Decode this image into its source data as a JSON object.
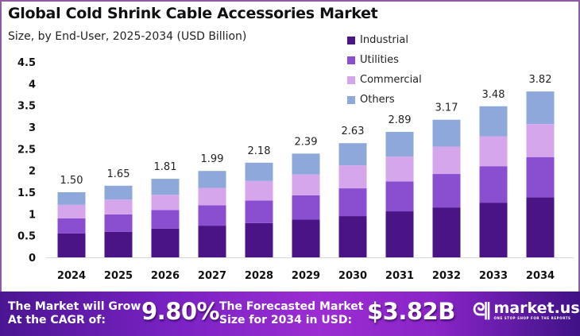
{
  "header": {
    "title": "Global Cold Shrink Cable Accessories Market",
    "subtitle": "Size, by End-User, 2025-2034 (USD Billion)"
  },
  "colors": {
    "Industrial": "#4a1486",
    "Utilities": "#8a4fd0",
    "Commercial": "#d6a6ec",
    "Others": "#8ea8dc",
    "border": "#8e5ba8",
    "footer_accent": "#9b2dd2"
  },
  "chart_data": {
    "type": "bar",
    "stacked": true,
    "title": "Global Cold Shrink Cable Accessories Market",
    "subtitle": "Size, by End-User, 2025-2034 (USD Billion)",
    "xlabel": "",
    "ylabel": "",
    "ylim": [
      0,
      4.5
    ],
    "yticks": [
      "0",
      "0.5",
      "1",
      "1.5",
      "2",
      "2.5",
      "3",
      "3.5",
      "4",
      "4.5"
    ],
    "ytick_values": [
      0,
      0.5,
      1,
      1.5,
      2,
      2.5,
      3,
      3.5,
      4,
      4.5
    ],
    "grid": false,
    "legend_position": "top-right",
    "categories": [
      "2024",
      "2025",
      "2026",
      "2027",
      "2028",
      "2029",
      "2030",
      "2031",
      "2032",
      "2033",
      "2034"
    ],
    "series": [
      {
        "name": "Industrial",
        "values": [
          0.55,
          0.59,
          0.66,
          0.73,
          0.79,
          0.87,
          0.95,
          1.06,
          1.15,
          1.26,
          1.38
        ]
      },
      {
        "name": "Utilities",
        "values": [
          0.35,
          0.4,
          0.43,
          0.47,
          0.52,
          0.56,
          0.64,
          0.69,
          0.77,
          0.84,
          0.93
        ]
      },
      {
        "name": "Commercial",
        "values": [
          0.31,
          0.34,
          0.35,
          0.4,
          0.45,
          0.48,
          0.53,
          0.57,
          0.63,
          0.69,
          0.76
        ]
      },
      {
        "name": "Others",
        "values": [
          0.29,
          0.32,
          0.37,
          0.39,
          0.42,
          0.48,
          0.51,
          0.57,
          0.62,
          0.69,
          0.75
        ]
      }
    ],
    "totals": [
      1.5,
      1.65,
      1.81,
      1.99,
      2.18,
      2.39,
      2.63,
      2.89,
      3.17,
      3.48,
      3.82
    ],
    "total_labels": [
      "1.50",
      "1.65",
      "1.81",
      "1.99",
      "2.18",
      "2.39",
      "2.63",
      "2.89",
      "3.17",
      "3.48",
      "3.82"
    ]
  },
  "legend": [
    {
      "label": "Industrial"
    },
    {
      "label": "Utilities"
    },
    {
      "label": "Commercial"
    },
    {
      "label": "Others"
    }
  ],
  "footer": {
    "cagr_text_line1": "The Market will Grow",
    "cagr_text_line2": "At the CAGR of:",
    "cagr_value": "9.80%",
    "forecast_text_line1": "The Forecasted Market",
    "forecast_text_line2": "Size for 2034 in USD:",
    "forecast_value": "$3.82B",
    "logo_mark": "ᘓ‖",
    "logo_name": "market.us",
    "logo_tagline": "ONE STOP SHOP FOR THE REPORTS"
  }
}
